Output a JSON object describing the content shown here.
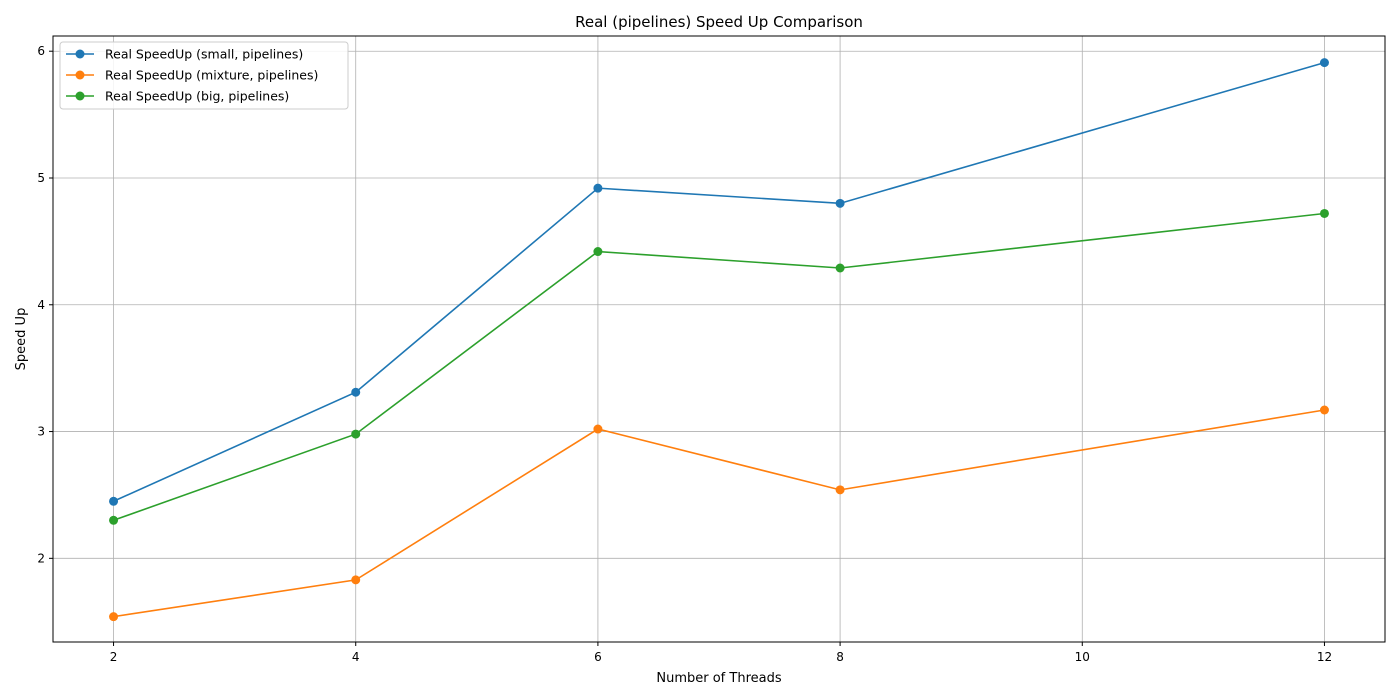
{
  "chart_data": {
    "type": "line",
    "title": "Real (pipelines) Speed Up Comparison",
    "xlabel": "Number of Threads",
    "ylabel": "Speed Up",
    "x": [
      2,
      4,
      6,
      8,
      12
    ],
    "xlim": [
      1.5,
      12.5
    ],
    "ylim": [
      1.34,
      6.12
    ],
    "xticks": [
      2,
      4,
      6,
      8,
      10,
      12
    ],
    "yticks": [
      2,
      3,
      4,
      5,
      6
    ],
    "grid": true,
    "legend_position": "top-left",
    "series": [
      {
        "name": "Real SpeedUp (small, pipelines)",
        "color": "#1f77b4",
        "values": [
          2.45,
          3.31,
          4.92,
          4.8,
          5.91
        ]
      },
      {
        "name": "Real SpeedUp (mixture, pipelines)",
        "color": "#ff7f0e",
        "values": [
          1.54,
          1.83,
          3.02,
          2.54,
          3.17
        ]
      },
      {
        "name": "Real SpeedUp (big, pipelines)",
        "color": "#2ca02c",
        "values": [
          2.3,
          2.98,
          4.42,
          4.29,
          4.72
        ]
      }
    ]
  }
}
